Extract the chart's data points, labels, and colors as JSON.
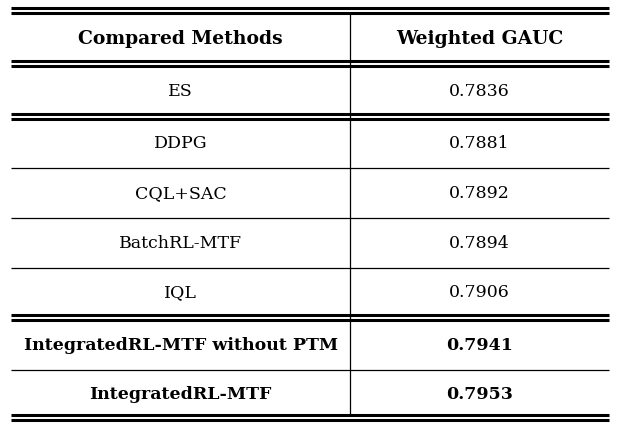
{
  "headers": [
    "Compared Methods",
    "Weighted GAUC"
  ],
  "rows": [
    {
      "method": "ES",
      "value": "0.7836",
      "bold": false,
      "group": 1
    },
    {
      "method": "DDPG",
      "value": "0.7881",
      "bold": false,
      "group": 2
    },
    {
      "method": "CQL+SAC",
      "value": "0.7892",
      "bold": false,
      "group": 2
    },
    {
      "method": "BatchRL-MTF",
      "value": "0.7894",
      "bold": false,
      "group": 2
    },
    {
      "method": "IQL",
      "value": "0.7906",
      "bold": false,
      "group": 2
    },
    {
      "method": "IntegratedRL-MTF without PTM",
      "value": "0.7941",
      "bold": true,
      "group": 3
    },
    {
      "method": "IntegratedRL-MTF",
      "value": "0.7953",
      "bold": true,
      "group": 3
    }
  ],
  "col_split": 0.565,
  "bg_color": "#ffffff",
  "text_color": "#000000",
  "header_fontsize": 13.5,
  "row_fontsize": 12.5,
  "double_line_after": [
    0,
    4
  ]
}
